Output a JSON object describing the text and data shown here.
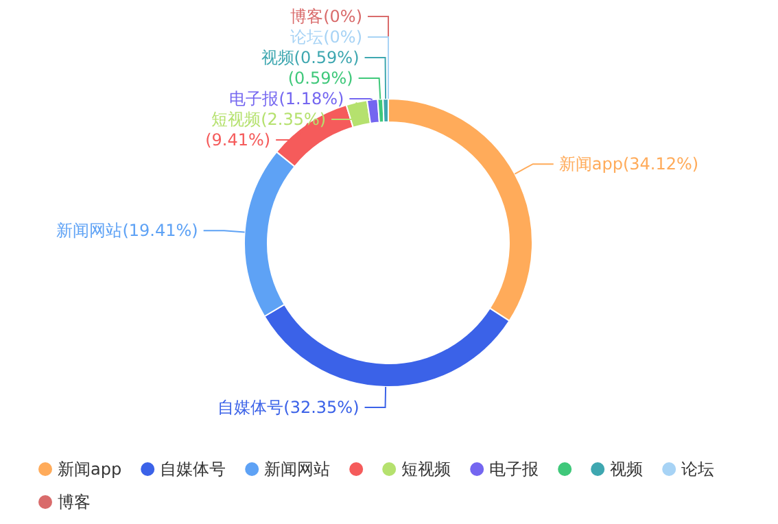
{
  "chart_data": {
    "type": "donut",
    "categories": [
      "新闻app",
      "自媒体号",
      "新闻网站",
      null,
      "短视频",
      "电子报",
      null,
      "视频",
      "论坛",
      "博客"
    ],
    "values": [
      34.12,
      32.35,
      19.41,
      9.41,
      2.35,
      1.18,
      0.59,
      0.59,
      0,
      0
    ],
    "colors": [
      "#ffab5a",
      "#3b62e8",
      "#5ea2f5",
      "#f55b5b",
      "#b5e16e",
      "#7466f0",
      "#3fc87a",
      "#3ea7b0",
      "#a7d3f5",
      "#d96b6b"
    ],
    "value_labels": [
      "(34.12%)",
      "(32.35%)",
      "(19.41%)",
      "(9.41%)",
      "(2.35%)",
      "(1.18%)",
      "(0.59%)",
      "(0.59%)",
      "(0%)",
      "(0%)"
    ],
    "legend": "bottom"
  }
}
